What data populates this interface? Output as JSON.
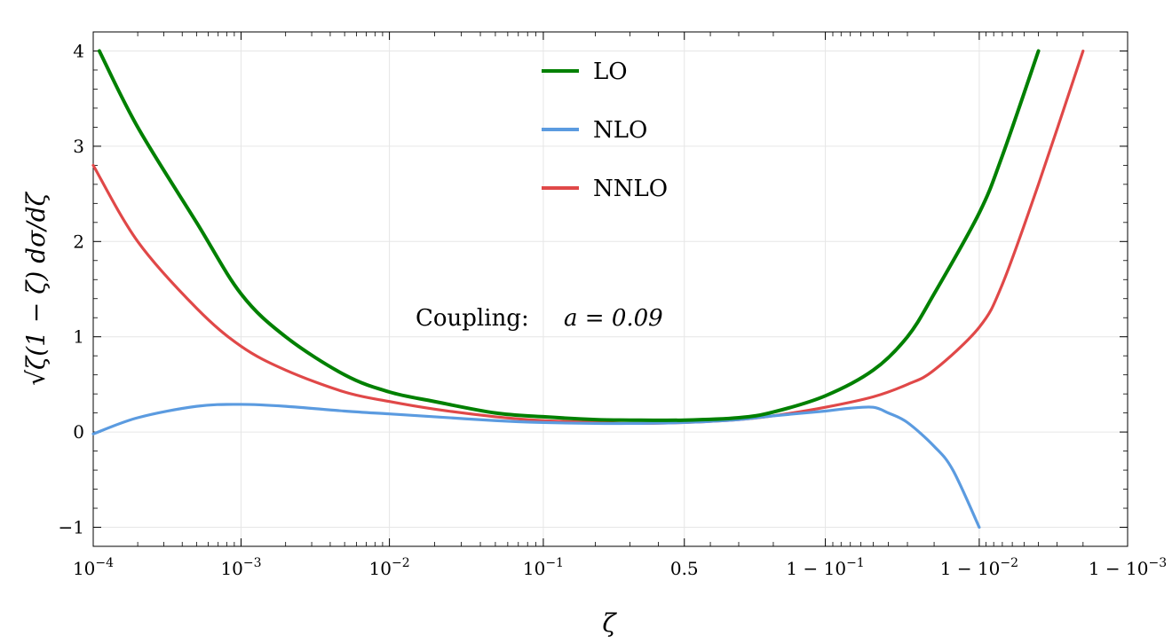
{
  "chart_data": {
    "type": "line",
    "xlabel": "ζ",
    "ylabel": "√ζ(1 − ζ) dσ/dζ",
    "x_scale": "logit",
    "xlim": [
      0.0001,
      0.999
    ],
    "ylim": [
      -1.2,
      4.2
    ],
    "grid": true,
    "legend_position": "top-center",
    "annotation": {
      "label": "Coupling:",
      "value": "a = 0.09"
    },
    "x_ticks": [
      {
        "value": 0.0001,
        "base": "10",
        "exp": "−4"
      },
      {
        "value": 0.001,
        "base": "10",
        "exp": "−3"
      },
      {
        "value": 0.01,
        "base": "10",
        "exp": "−2"
      },
      {
        "value": 0.1,
        "base": "10",
        "exp": "−1"
      },
      {
        "value": 0.5,
        "base": "0.5",
        "exp": ""
      },
      {
        "value": 0.9,
        "base": "1 − 10",
        "exp": "−1"
      },
      {
        "value": 0.99,
        "base": "1 − 10",
        "exp": "−2"
      },
      {
        "value": 0.999,
        "base": "1 − 10",
        "exp": "−3"
      }
    ],
    "y_ticks": [
      {
        "value": -1,
        "label": "−1"
      },
      {
        "value": 0,
        "label": "0"
      },
      {
        "value": 1,
        "label": "1"
      },
      {
        "value": 2,
        "label": "2"
      },
      {
        "value": 3,
        "label": "3"
      },
      {
        "value": 4,
        "label": "4"
      }
    ],
    "series": [
      {
        "name": "LO",
        "color": "#008000",
        "points": [
          [
            0.00011,
            4.0
          ],
          [
            0.0002,
            3.2
          ],
          [
            0.0005,
            2.2
          ],
          [
            0.001,
            1.45
          ],
          [
            0.002,
            1.0
          ],
          [
            0.005,
            0.6
          ],
          [
            0.01,
            0.42
          ],
          [
            0.02,
            0.32
          ],
          [
            0.05,
            0.2
          ],
          [
            0.1,
            0.16
          ],
          [
            0.2,
            0.13
          ],
          [
            0.3,
            0.125
          ],
          [
            0.5,
            0.125
          ],
          [
            0.7,
            0.15
          ],
          [
            0.8,
            0.21
          ],
          [
            0.9,
            0.38
          ],
          [
            0.95,
            0.65
          ],
          [
            0.97,
            1.0
          ],
          [
            0.98,
            1.45
          ],
          [
            0.99,
            2.3
          ],
          [
            0.993,
            2.9
          ],
          [
            0.996,
            4.0
          ]
        ]
      },
      {
        "name": "NLO",
        "color": "#5b9be0",
        "points": [
          [
            0.0001,
            -0.02
          ],
          [
            0.0002,
            0.15
          ],
          [
            0.0005,
            0.27
          ],
          [
            0.001,
            0.29
          ],
          [
            0.002,
            0.27
          ],
          [
            0.005,
            0.22
          ],
          [
            0.01,
            0.19
          ],
          [
            0.02,
            0.16
          ],
          [
            0.05,
            0.12
          ],
          [
            0.1,
            0.1
          ],
          [
            0.2,
            0.09
          ],
          [
            0.3,
            0.09
          ],
          [
            0.5,
            0.1
          ],
          [
            0.7,
            0.13
          ],
          [
            0.8,
            0.17
          ],
          [
            0.9,
            0.22
          ],
          [
            0.93,
            0.25
          ],
          [
            0.95,
            0.26
          ],
          [
            0.96,
            0.2
          ],
          [
            0.97,
            0.1
          ],
          [
            0.98,
            -0.15
          ],
          [
            0.985,
            -0.4
          ],
          [
            0.99,
            -1.0
          ]
        ]
      },
      {
        "name": "NNLO",
        "color": "#e04848",
        "points": [
          [
            0.0001,
            2.8
          ],
          [
            0.0002,
            2.0
          ],
          [
            0.0005,
            1.3
          ],
          [
            0.001,
            0.9
          ],
          [
            0.002,
            0.65
          ],
          [
            0.005,
            0.42
          ],
          [
            0.01,
            0.32
          ],
          [
            0.02,
            0.24
          ],
          [
            0.05,
            0.16
          ],
          [
            0.1,
            0.12
          ],
          [
            0.2,
            0.1
          ],
          [
            0.3,
            0.09
          ],
          [
            0.5,
            0.1
          ],
          [
            0.7,
            0.13
          ],
          [
            0.8,
            0.17
          ],
          [
            0.9,
            0.26
          ],
          [
            0.95,
            0.37
          ],
          [
            0.97,
            0.5
          ],
          [
            0.98,
            0.65
          ],
          [
            0.99,
            1.1
          ],
          [
            0.993,
            1.55
          ],
          [
            0.996,
            2.6
          ],
          [
            0.998,
            4.0
          ]
        ]
      }
    ]
  }
}
